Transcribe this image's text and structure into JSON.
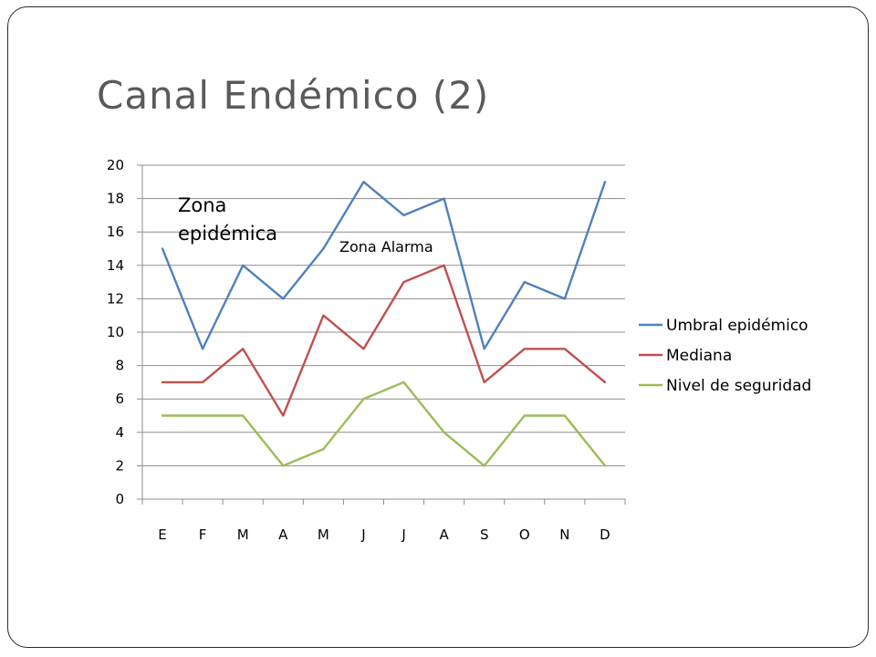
{
  "slide": {
    "title": "Canal Endémico (2)"
  },
  "chart_data": {
    "type": "line",
    "categories": [
      "E",
      "F",
      "M",
      "A",
      "M",
      "J",
      "J",
      "A",
      "S",
      "O",
      "N",
      "D"
    ],
    "series": [
      {
        "name": "Umbral epidémico",
        "color": "#4F81BD",
        "values": [
          15,
          9,
          14,
          12,
          15,
          19,
          17,
          18,
          9,
          13,
          12,
          19
        ]
      },
      {
        "name": "Mediana",
        "color": "#C0504D",
        "values": [
          7,
          7,
          9,
          5,
          11,
          9,
          13,
          14,
          7,
          9,
          9,
          7
        ]
      },
      {
        "name": "Nivel de seguridad",
        "color": "#9BBB59",
        "values": [
          5,
          5,
          5,
          2,
          3,
          6,
          7,
          4,
          2,
          5,
          5,
          2
        ]
      }
    ],
    "ylim": [
      0,
      20
    ],
    "ytick_step": 2,
    "grid": true,
    "legend_position": "right",
    "annotations": [
      {
        "lines": [
          "Zona",
          "epidémica"
        ],
        "style": "big"
      },
      {
        "lines": [
          "Zona Alarma"
        ],
        "style": "small"
      }
    ]
  }
}
